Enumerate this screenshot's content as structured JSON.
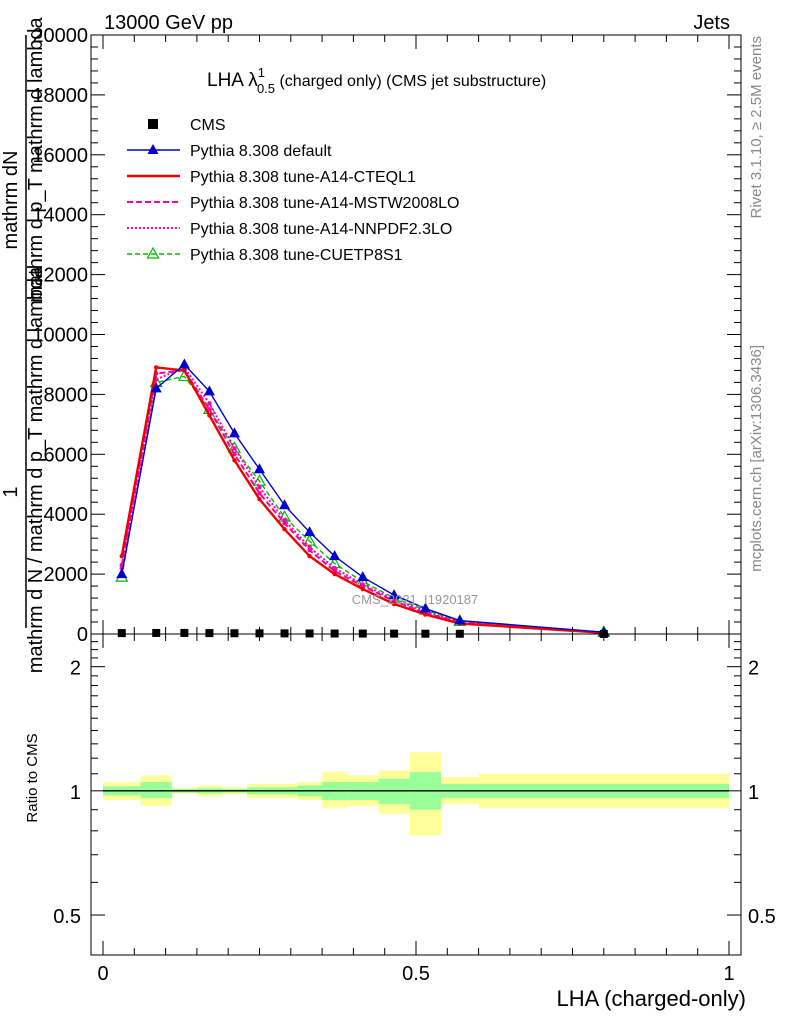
{
  "header": {
    "left": "13000 GeV pp",
    "right": "Jets"
  },
  "side_labels": {
    "rivet": "Rivet 3.1.10, ≥ 2.5M events",
    "mcplots": "mcplots.cern.ch [arXiv:1306.3436]"
  },
  "watermark": "CMS_2021_I1920187",
  "colors": {
    "cms": "#000000",
    "default": "#0000cc",
    "cteql1": "#ee0000",
    "mstw": "#ff0099",
    "nnpdf": "#ff00cc",
    "cuetp8s1": "#00bb00",
    "band_inner": "#99ff99",
    "band_outer": "#ffff99"
  },
  "chart_data": [
    {
      "type": "line",
      "title": "LHA λ",
      "title_sup": "1",
      "title_sub": "0.5",
      "title_rest": " (charged only) (CMS jet substructure)",
      "ylabel_top": "1",
      "ylabel_num": "mathrm dN",
      "ylabel_frac": "mathrm d N / mathrm d p_T mathrm d lambda",
      "ylabel_full": "mathrm d N / mathrm d p_T mathrm d lambda",
      "ylabel_den": "mathrm d p_T mathrm d lambda",
      "xlim": [
        0,
        1
      ],
      "ylim": [
        0,
        20000
      ],
      "yticks": [
        0,
        2000,
        4000,
        6000,
        8000,
        10000,
        12000,
        14000,
        16000,
        18000,
        20000
      ],
      "ytick_labels": [
        "0",
        "2000",
        "4000",
        "6000",
        "8000",
        "10000",
        "12000",
        "14000",
        "16000",
        "18000",
        "20000"
      ],
      "x": [
        0.03,
        0.085,
        0.13,
        0.17,
        0.21,
        0.25,
        0.29,
        0.33,
        0.37,
        0.415,
        0.465,
        0.515,
        0.57,
        0.8
      ],
      "series": [
        {
          "name": "CMS",
          "key": "cms",
          "values": [
            30,
            35,
            35,
            30,
            25,
            22,
            20,
            18,
            16,
            14,
            12,
            10,
            8,
            2
          ]
        },
        {
          "name": "Pythia 8.308 default",
          "key": "default",
          "values": [
            2000,
            8200,
            9000,
            8100,
            6700,
            5500,
            4300,
            3400,
            2600,
            1900,
            1300,
            850,
            450,
            60
          ]
        },
        {
          "name": "Pythia 8.308 tune-A14-CTEQL1",
          "key": "cteql1",
          "values": [
            2600,
            8900,
            8800,
            7300,
            5800,
            4500,
            3500,
            2600,
            2000,
            1500,
            1000,
            650,
            350,
            40
          ]
        },
        {
          "name": "Pythia 8.308 tune-A14-MSTW2008LO",
          "key": "mstw",
          "values": [
            2300,
            8700,
            8800,
            7500,
            6000,
            4700,
            3700,
            2800,
            2100,
            1600,
            1100,
            700,
            380,
            45
          ]
        },
        {
          "name": "Pythia 8.308 tune-A14-NNPDF2.3LO",
          "key": "nnpdf",
          "values": [
            2200,
            8500,
            8900,
            7700,
            6200,
            4900,
            3800,
            2900,
            2200,
            1650,
            1150,
            750,
            400,
            50
          ]
        },
        {
          "name": "Pythia 8.308 tune-CUETP8S1",
          "key": "cuetp8s1",
          "values": [
            1900,
            8400,
            8600,
            7500,
            6200,
            5100,
            3900,
            3100,
            2350,
            1750,
            1200,
            800,
            420,
            55
          ]
        }
      ]
    },
    {
      "type": "area",
      "ylabel": "Ratio to CMS",
      "xlabel": "LHA (charged-only)",
      "xlim": [
        0,
        1
      ],
      "ylim": [
        0.4,
        2.4
      ],
      "log_y": true,
      "yticks": [
        0.5,
        1,
        2
      ],
      "ytick_labels": [
        "0.5",
        "1",
        "2"
      ],
      "xticks": [
        0,
        0.5,
        1
      ],
      "xtick_labels": [
        "0",
        "0.5",
        "1"
      ],
      "bins": [
        {
          "lo": 0.0,
          "hi": 0.06,
          "inner": [
            0.975,
            1.025
          ],
          "outer": [
            0.95,
            1.05
          ]
        },
        {
          "lo": 0.06,
          "hi": 0.11,
          "inner": [
            0.96,
            1.05
          ],
          "outer": [
            0.92,
            1.09
          ]
        },
        {
          "lo": 0.11,
          "hi": 0.15,
          "inner": [
            0.99,
            1.01
          ],
          "outer": [
            0.985,
            1.015
          ]
        },
        {
          "lo": 0.15,
          "hi": 0.19,
          "inner": [
            0.985,
            1.015
          ],
          "outer": [
            0.97,
            1.03
          ]
        },
        {
          "lo": 0.19,
          "hi": 0.23,
          "inner": [
            0.99,
            1.01
          ],
          "outer": [
            0.98,
            1.02
          ]
        },
        {
          "lo": 0.23,
          "hi": 0.27,
          "inner": [
            0.98,
            1.02
          ],
          "outer": [
            0.96,
            1.04
          ]
        },
        {
          "lo": 0.27,
          "hi": 0.31,
          "inner": [
            0.98,
            1.02
          ],
          "outer": [
            0.96,
            1.04
          ]
        },
        {
          "lo": 0.31,
          "hi": 0.35,
          "inner": [
            0.97,
            1.03
          ],
          "outer": [
            0.95,
            1.05
          ]
        },
        {
          "lo": 0.35,
          "hi": 0.39,
          "inner": [
            0.95,
            1.05
          ],
          "outer": [
            0.91,
            1.11
          ]
        },
        {
          "lo": 0.39,
          "hi": 0.44,
          "inner": [
            0.95,
            1.05
          ],
          "outer": [
            0.92,
            1.09
          ]
        },
        {
          "lo": 0.44,
          "hi": 0.49,
          "inner": [
            0.93,
            1.07
          ],
          "outer": [
            0.88,
            1.12
          ]
        },
        {
          "lo": 0.49,
          "hi": 0.54,
          "inner": [
            0.9,
            1.11
          ],
          "outer": [
            0.78,
            1.24
          ]
        },
        {
          "lo": 0.54,
          "hi": 0.6,
          "inner": [
            0.96,
            1.04
          ],
          "outer": [
            0.93,
            1.08
          ]
        },
        {
          "lo": 0.6,
          "hi": 1.0,
          "inner": [
            0.96,
            1.04
          ],
          "outer": [
            0.91,
            1.1
          ]
        }
      ]
    }
  ]
}
